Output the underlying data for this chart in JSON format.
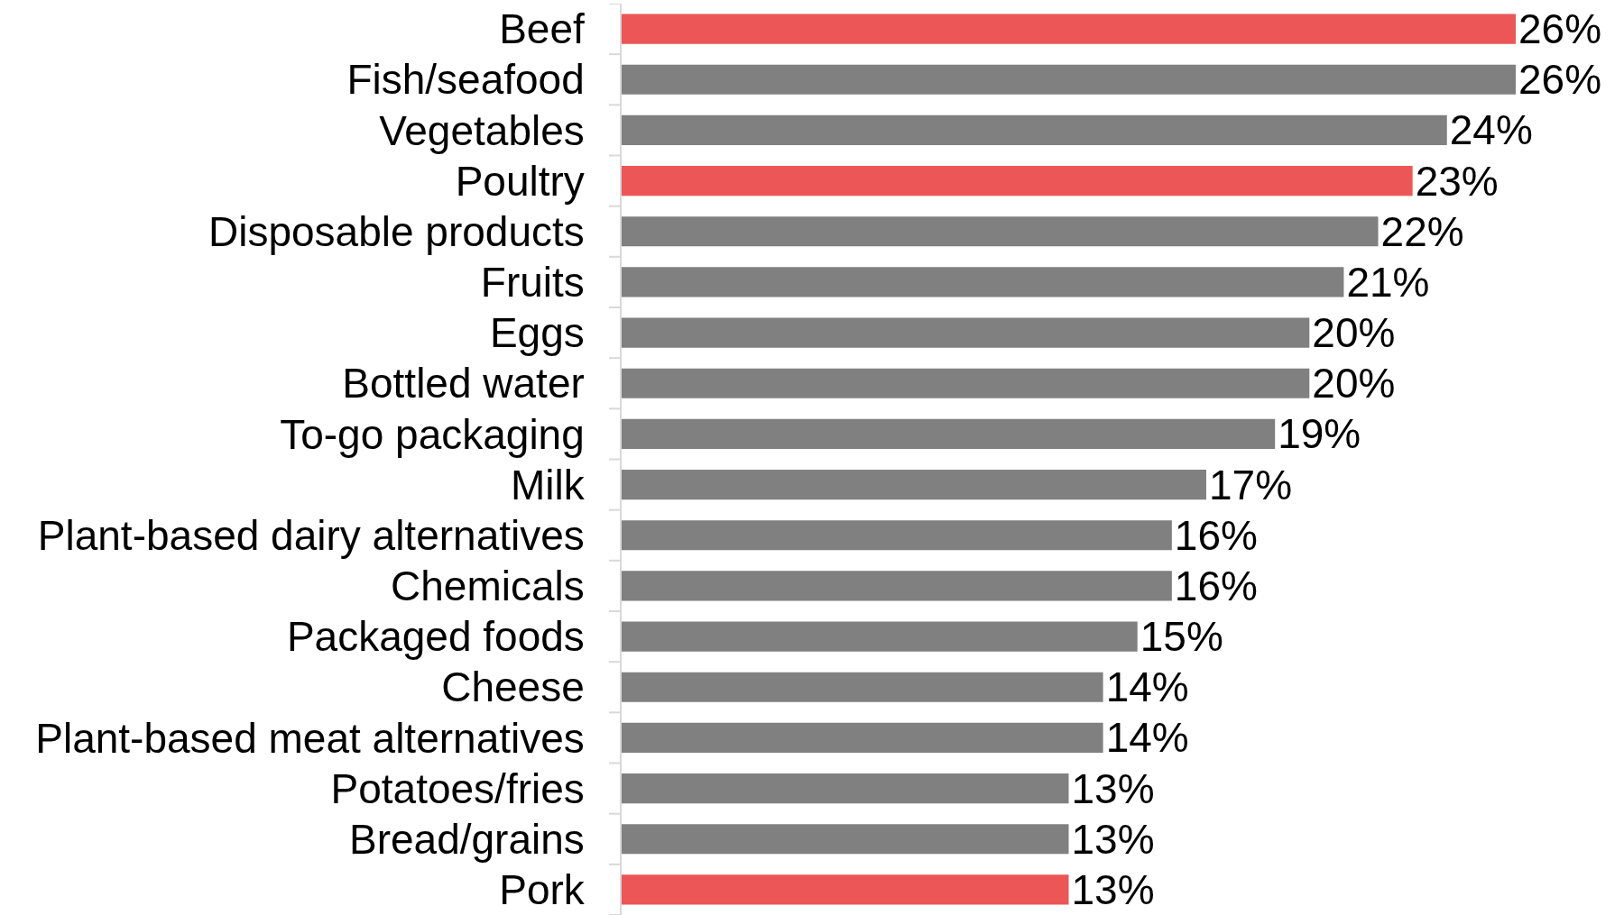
{
  "chart_data": {
    "type": "bar",
    "orientation": "horizontal",
    "categories": [
      "Beef",
      "Fish/seafood",
      "Vegetables",
      "Poultry",
      "Disposable products",
      "Fruits",
      "Eggs",
      "Bottled water",
      "To-go packaging",
      "Milk",
      "Plant-based dairy alternatives",
      "Chemicals",
      "Packaged foods",
      "Cheese",
      "Plant-based meat alternatives",
      "Potatoes/fries",
      "Bread/grains",
      "Pork"
    ],
    "values": [
      26,
      26,
      24,
      23,
      22,
      21,
      20,
      20,
      19,
      17,
      16,
      16,
      15,
      14,
      14,
      13,
      13,
      13
    ],
    "value_labels": [
      "26%",
      "26%",
      "24%",
      "23%",
      "22%",
      "21%",
      "20%",
      "20%",
      "19%",
      "17%",
      "16%",
      "16%",
      "15%",
      "14%",
      "14%",
      "13%",
      "13%",
      "13%"
    ],
    "colors": [
      "#ec5656",
      "#808080",
      "#808080",
      "#ec5656",
      "#808080",
      "#808080",
      "#808080",
      "#808080",
      "#808080",
      "#808080",
      "#808080",
      "#808080",
      "#808080",
      "#808080",
      "#808080",
      "#808080",
      "#808080",
      "#ec5656"
    ],
    "tick_labels": "y"
  }
}
